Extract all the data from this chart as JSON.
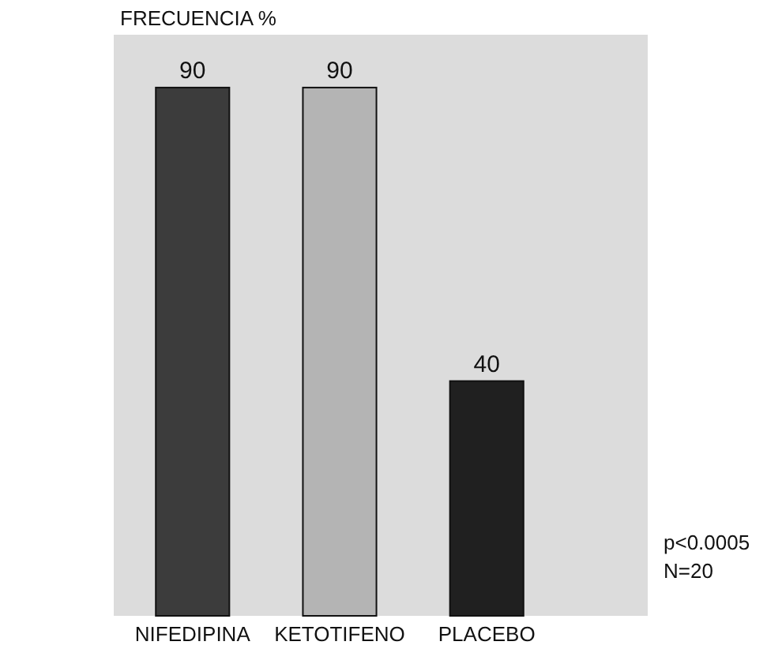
{
  "chart_data": {
    "type": "bar",
    "title": "FRECUENCIA %",
    "categories": [
      "NIFEDIPINA",
      "KETOTIFENO",
      "PLACEBO"
    ],
    "values": [
      90,
      90,
      40
    ],
    "colors": [
      "#3c3c3c",
      "#b4b4b4",
      "#202020"
    ],
    "data_labels": true,
    "annotations": [
      "p<0.0005",
      "N=20"
    ]
  }
}
